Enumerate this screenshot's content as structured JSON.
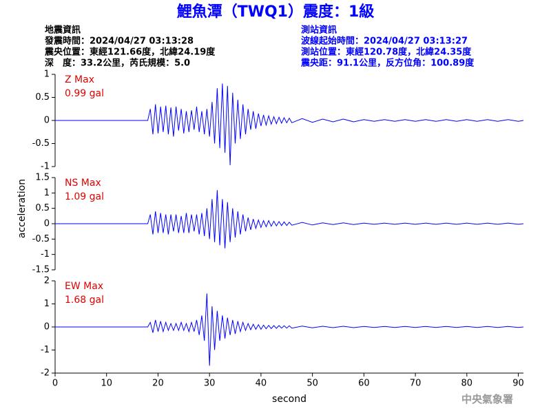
{
  "header": {
    "title": "鯉魚潭（TWQ1）震度：1級",
    "left": [
      "地震資訊",
      "發震時間：2024/04/27 03:13:28",
      "震央位置：東經121.66度，北緯24.19度",
      "深　度：33.2公里，芮氏規模：5.0"
    ],
    "right": [
      "測站資訊",
      "波線起始時間：2024/04/27 03:13:27",
      "測站位置：東經120.78度，北緯24.35度",
      "震央距：91.1公里，反方位角：100.89度"
    ]
  },
  "footer": "中央氣象署",
  "chart_data": [
    {
      "type": "line",
      "label": "Z Max",
      "max": "0.99 gal",
      "color": "#0000ff",
      "xlim": [
        0,
        91
      ],
      "ylim": [
        -1,
        1
      ],
      "yticks": [
        -1,
        -0.5,
        0,
        0.5,
        1
      ],
      "x": [
        0,
        18,
        18.5,
        19,
        19.5,
        20,
        20.5,
        21,
        21.5,
        22,
        22.5,
        23,
        23.5,
        24,
        24.5,
        25,
        25.5,
        26,
        26.5,
        27,
        27.5,
        28,
        28.5,
        29,
        29.5,
        30,
        30.5,
        31,
        31.5,
        32,
        32.5,
        33,
        33.5,
        34,
        34.5,
        35,
        35.5,
        36,
        36.5,
        37,
        37.5,
        38,
        38.5,
        39,
        39.5,
        40,
        40.5,
        41,
        41.5,
        42,
        42.5,
        43,
        43.5,
        44,
        44.5,
        45,
        45.5,
        46,
        48,
        50,
        52,
        54,
        56,
        58,
        60,
        62,
        64,
        66,
        68,
        70,
        72,
        74,
        76,
        78,
        80,
        82,
        84,
        86,
        88,
        90,
        91
      ],
      "values": [
        0,
        0,
        0.25,
        -0.3,
        0.35,
        -0.28,
        0.3,
        -0.25,
        0.32,
        -0.3,
        0.28,
        -0.35,
        0.3,
        -0.22,
        0.25,
        -0.28,
        0.2,
        -0.25,
        0.22,
        -0.2,
        0.3,
        -0.25,
        0.2,
        -0.3,
        0.25,
        -0.35,
        0.4,
        -0.5,
        0.7,
        -0.6,
        0.8,
        -0.7,
        0.75,
        -0.97,
        0.6,
        -0.5,
        0.45,
        -0.4,
        0.35,
        -0.3,
        0.25,
        -0.2,
        0.2,
        -0.18,
        0.15,
        -0.12,
        0.12,
        -0.1,
        0.1,
        -0.08,
        0.08,
        -0.07,
        0.07,
        -0.06,
        0.06,
        -0.05,
        0.05,
        -0.05,
        0.04,
        -0.04,
        0.03,
        -0.03,
        0.03,
        -0.03,
        0.02,
        -0.02,
        0.02,
        -0.02,
        0.02,
        -0.02,
        0.02,
        -0.02,
        0.02,
        -0.02,
        0.02,
        -0.02,
        0.02,
        -0.02,
        0.02,
        -0.02,
        0
      ]
    },
    {
      "type": "line",
      "label": "NS Max",
      "max": "1.09 gal",
      "color": "#0000ff",
      "xlim": [
        0,
        91
      ],
      "ylim": [
        -1.5,
        1.5
      ],
      "yticks": [
        -1.5,
        -1,
        -0.5,
        0,
        0.5,
        1,
        1.5
      ],
      "ylabel": "acceleration",
      "x": [
        0,
        18,
        18.5,
        19,
        19.5,
        20,
        20.5,
        21,
        21.5,
        22,
        22.5,
        23,
        23.5,
        24,
        24.5,
        25,
        25.5,
        26,
        26.5,
        27,
        27.5,
        28,
        28.5,
        29,
        29.5,
        30,
        30.5,
        31,
        31.5,
        32,
        32.5,
        33,
        33.5,
        34,
        34.5,
        35,
        35.5,
        36,
        36.5,
        37,
        37.5,
        38,
        38.5,
        39,
        39.5,
        40,
        40.5,
        41,
        41.5,
        42,
        42.5,
        43,
        43.5,
        44,
        44.5,
        45,
        45.5,
        46,
        48,
        50,
        52,
        54,
        56,
        58,
        60,
        62,
        64,
        66,
        68,
        70,
        72,
        74,
        76,
        78,
        80,
        82,
        84,
        86,
        88,
        90,
        91
      ],
      "values": [
        0,
        0,
        0.3,
        -0.35,
        0.4,
        -0.3,
        0.35,
        -0.3,
        0.3,
        -0.35,
        0.3,
        -0.25,
        0.3,
        -0.3,
        0.25,
        -0.3,
        0.35,
        -0.3,
        0.3,
        -0.25,
        0.3,
        -0.35,
        0.35,
        -0.4,
        0.5,
        -0.5,
        0.8,
        -0.6,
        1.09,
        -0.7,
        0.8,
        -0.8,
        0.7,
        -0.6,
        0.5,
        -0.45,
        0.4,
        -0.35,
        0.3,
        -0.25,
        0.2,
        -0.2,
        0.15,
        -0.15,
        0.12,
        -0.12,
        0.1,
        -0.1,
        0.1,
        -0.08,
        0.08,
        -0.07,
        0.07,
        -0.06,
        0.06,
        -0.06,
        0.05,
        -0.05,
        0.04,
        -0.04,
        0.03,
        -0.03,
        0.03,
        -0.03,
        0.02,
        -0.02,
        0.02,
        -0.02,
        0.02,
        -0.02,
        0.02,
        -0.02,
        0.02,
        -0.02,
        0.02,
        -0.02,
        0.02,
        -0.02,
        0.02,
        -0.02,
        0
      ]
    },
    {
      "type": "line",
      "label": "EW Max",
      "max": "1.68 gal",
      "color": "#0000ff",
      "xlim": [
        0,
        91
      ],
      "ylim": [
        -2,
        2
      ],
      "yticks": [
        -2,
        -1,
        0,
        1,
        2
      ],
      "xticks": [
        0,
        10,
        20,
        30,
        40,
        50,
        60,
        70,
        80,
        90
      ],
      "xlabel": "second",
      "x": [
        0,
        18,
        18.5,
        19,
        19.5,
        20,
        20.5,
        21,
        21.5,
        22,
        22.5,
        23,
        23.5,
        24,
        24.5,
        25,
        25.5,
        26,
        26.5,
        27,
        27.5,
        28,
        28.5,
        29,
        29.5,
        30,
        30.5,
        31,
        31.5,
        32,
        32.5,
        33,
        33.5,
        34,
        34.5,
        35,
        35.5,
        36,
        36.5,
        37,
        37.5,
        38,
        38.5,
        39,
        39.5,
        40,
        40.5,
        41,
        41.5,
        42,
        42.5,
        43,
        43.5,
        44,
        44.5,
        45,
        45.5,
        46,
        48,
        50,
        52,
        54,
        56,
        58,
        60,
        62,
        64,
        66,
        68,
        70,
        72,
        74,
        76,
        78,
        80,
        82,
        84,
        86,
        88,
        90,
        91
      ],
      "values": [
        0,
        0,
        0.2,
        -0.25,
        0.3,
        -0.2,
        0.25,
        -0.2,
        0.2,
        -0.15,
        0.15,
        -0.15,
        0.15,
        -0.15,
        0.2,
        -0.15,
        0.15,
        -0.2,
        0.2,
        -0.2,
        0.3,
        -0.35,
        0.5,
        -0.6,
        1.45,
        -1.68,
        0.9,
        -1.0,
        0.7,
        -0.6,
        0.5,
        -0.5,
        0.4,
        -0.35,
        0.3,
        -0.3,
        0.25,
        -0.2,
        0.2,
        -0.15,
        0.15,
        -0.12,
        0.12,
        -0.1,
        0.1,
        -0.1,
        0.08,
        -0.08,
        0.07,
        -0.07,
        0.06,
        -0.06,
        0.06,
        -0.05,
        0.05,
        -0.05,
        0.05,
        -0.05,
        0.04,
        -0.04,
        0.03,
        -0.03,
        0.03,
        -0.03,
        0.02,
        -0.02,
        0.02,
        -0.02,
        0.02,
        -0.02,
        0.02,
        -0.02,
        0.02,
        -0.02,
        0.02,
        -0.02,
        0.02,
        -0.02,
        0.02,
        -0.02,
        0
      ]
    }
  ]
}
